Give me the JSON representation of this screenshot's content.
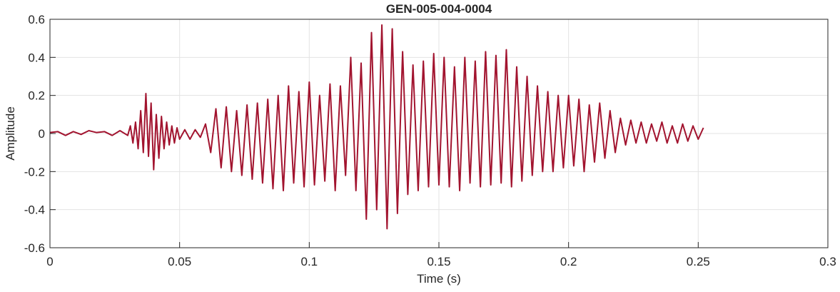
{
  "chart_data": {
    "type": "line",
    "title": "GEN-005-004-0004",
    "xlabel": "Time (s)",
    "ylabel": "Amplitude",
    "color": "#a2142f",
    "grid": true,
    "xlim": [
      0,
      0.3
    ],
    "xticks": [
      0,
      0.05,
      0.1,
      0.15,
      0.2,
      0.25,
      0.3
    ],
    "ylim": [
      -0.6,
      0.6
    ],
    "yticks": [
      -0.6,
      -0.4,
      -0.2,
      0,
      0.2,
      0.4,
      0.6
    ],
    "x": [
      0,
      0.003,
      0.006,
      0.009,
      0.012,
      0.015,
      0.018,
      0.021,
      0.024,
      0.027,
      0.03,
      0.031,
      0.032,
      0.033,
      0.034,
      0.035,
      0.036,
      0.037,
      0.038,
      0.039,
      0.04,
      0.041,
      0.042,
      0.043,
      0.044,
      0.045,
      0.046,
      0.047,
      0.048,
      0.049,
      0.05,
      0.052,
      0.054,
      0.056,
      0.058,
      0.06,
      0.062,
      0.064,
      0.066,
      0.068,
      0.07,
      0.072,
      0.074,
      0.076,
      0.078,
      0.08,
      0.082,
      0.084,
      0.086,
      0.088,
      0.09,
      0.092,
      0.094,
      0.096,
      0.098,
      0.1,
      0.102,
      0.104,
      0.106,
      0.108,
      0.11,
      0.112,
      0.114,
      0.116,
      0.118,
      0.12,
      0.122,
      0.124,
      0.126,
      0.128,
      0.13,
      0.132,
      0.134,
      0.136,
      0.138,
      0.14,
      0.142,
      0.144,
      0.146,
      0.148,
      0.15,
      0.152,
      0.154,
      0.156,
      0.158,
      0.16,
      0.162,
      0.164,
      0.166,
      0.168,
      0.17,
      0.172,
      0.174,
      0.176,
      0.178,
      0.18,
      0.182,
      0.184,
      0.186,
      0.188,
      0.19,
      0.192,
      0.194,
      0.196,
      0.198,
      0.2,
      0.202,
      0.204,
      0.206,
      0.208,
      0.21,
      0.212,
      0.214,
      0.216,
      0.218,
      0.22,
      0.222,
      0.224,
      0.226,
      0.228,
      0.23,
      0.232,
      0.234,
      0.236,
      0.238,
      0.24,
      0.242,
      0.244,
      0.246,
      0.248,
      0.25,
      0.252
    ],
    "values": [
      0.005,
      0.01,
      -0.01,
      0.01,
      -0.005,
      0.015,
      0.005,
      0.01,
      -0.01,
      0.015,
      -0.01,
      0.04,
      -0.05,
      0.06,
      -0.08,
      0.12,
      -0.1,
      0.21,
      -0.12,
      0.16,
      -0.19,
      0.1,
      -0.13,
      0.09,
      -0.08,
      0.06,
      -0.06,
      0.04,
      -0.05,
      0.03,
      -0.03,
      0.02,
      -0.03,
      0.02,
      -0.02,
      0.05,
      -0.1,
      0.13,
      -0.18,
      0.14,
      -0.2,
      0.12,
      -0.22,
      0.15,
      -0.24,
      0.16,
      -0.26,
      0.18,
      -0.29,
      0.2,
      -0.3,
      0.25,
      -0.26,
      0.22,
      -0.28,
      0.27,
      -0.27,
      0.2,
      -0.25,
      0.26,
      -0.3,
      0.25,
      -0.22,
      0.4,
      -0.3,
      0.37,
      -0.45,
      0.53,
      -0.4,
      0.57,
      -0.5,
      0.55,
      -0.42,
      0.43,
      -0.32,
      0.36,
      -0.3,
      0.38,
      -0.28,
      0.42,
      -0.27,
      0.4,
      -0.28,
      0.35,
      -0.3,
      0.4,
      -0.26,
      0.38,
      -0.28,
      0.43,
      -0.27,
      0.41,
      -0.26,
      0.44,
      -0.28,
      0.35,
      -0.25,
      0.3,
      -0.22,
      0.25,
      -0.2,
      0.22,
      -0.2,
      0.2,
      -0.18,
      0.2,
      -0.17,
      0.18,
      -0.2,
      0.15,
      -0.15,
      0.16,
      -0.13,
      0.12,
      -0.1,
      0.08,
      -0.06,
      0.07,
      -0.05,
      0.06,
      -0.05,
      0.05,
      -0.04,
      0.06,
      -0.05,
      0.04,
      -0.05,
      0.05,
      -0.04,
      0.04,
      -0.03,
      0.03
    ]
  }
}
